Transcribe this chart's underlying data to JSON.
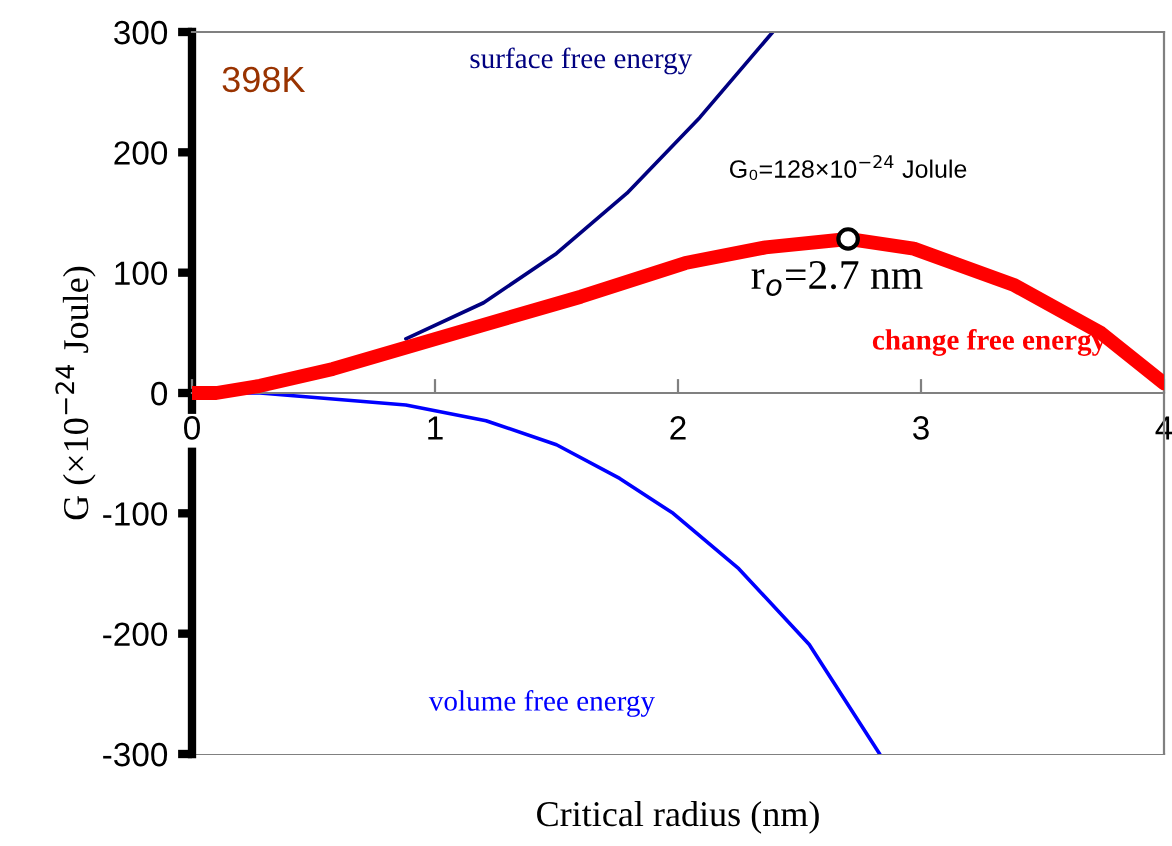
{
  "chart_data": {
    "type": "line",
    "xlabel": "Critical radius (nm)",
    "ylabel": "G (×10$^{−24}$ Joule)",
    "xlim": [
      0,
      4
    ],
    "xticks": [
      0,
      1,
      2,
      3,
      4
    ],
    "ylim": [
      -300,
      300
    ],
    "yticks": [
      -300,
      -200,
      -100,
      0,
      100,
      200,
      300
    ],
    "grid": false,
    "legend": false,
    "marker": "none",
    "series": [
      {
        "name": "surface free energy",
        "color": "#000080",
        "x": [
          0.88,
          1.2,
          1.5,
          1.79,
          2.09,
          2.39
        ],
        "values": [
          45,
          75,
          116,
          166,
          229,
          300
        ]
      },
      {
        "name": "change free energy",
        "color": "#ff0000",
        "x": [
          0,
          0.1,
          0.28,
          0.58,
          1.19,
          1.6,
          2.03,
          2.36,
          2.7,
          2.97,
          3.38,
          3.74,
          4
        ],
        "values": [
          0,
          0,
          6,
          20,
          56,
          80,
          108,
          121,
          128,
          120,
          90,
          50,
          8
        ]
      },
      {
        "name": "volume free energy",
        "color": "#0000ff",
        "x": [
          0,
          0.28,
          0.88,
          1.21,
          1.5,
          1.76,
          1.98,
          2.25,
          2.54,
          2.83
        ],
        "values": [
          0,
          0,
          -10,
          -23,
          -43,
          -71,
          -100,
          -146,
          -209,
          -300
        ]
      }
    ],
    "annotations": [
      "398K",
      {
        "text": "G₀=128×10$^{−24}$ Jolule",
        "x": 2.7,
        "y": 128
      },
      {
        "text": "r$_{o}$=2.7 nm",
        "x": 2.7,
        "y": 128
      }
    ]
  }
}
